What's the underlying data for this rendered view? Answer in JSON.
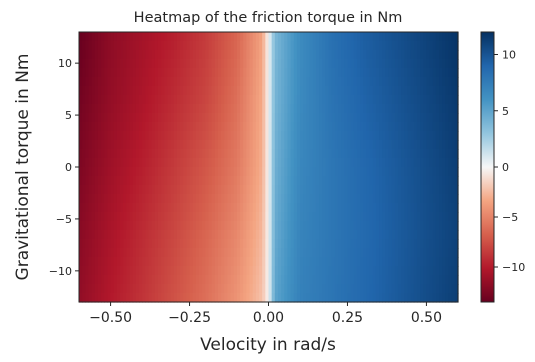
{
  "chart_data": {
    "type": "heatmap",
    "title": "Heatmap of the friction torque in Nm",
    "xlabel": "Velocity in rad/s",
    "ylabel": "Gravitational torque in Nm",
    "xlim": [
      -0.6,
      0.6
    ],
    "ylim": [
      -13,
      13
    ],
    "xticks": [
      -0.5,
      -0.25,
      0.0,
      0.25,
      0.5
    ],
    "xtick_labels": [
      "−0.50",
      "−0.25",
      "0.00",
      "0.25",
      "0.50"
    ],
    "yticks": [
      10,
      5,
      0,
      -5,
      -10
    ],
    "ytick_labels": [
      "10",
      "5",
      "0",
      "−5",
      "−10"
    ],
    "colormap": "RdBu",
    "color_range": [
      -13.5,
      12
    ],
    "colorbar_ticks": [
      10,
      5,
      0,
      -5,
      -10
    ],
    "colorbar_tick_labels": [
      "10",
      "5",
      "0",
      "−5",
      "−10"
    ],
    "x": [
      -0.6,
      -0.5,
      -0.4,
      -0.3,
      -0.2,
      -0.1,
      -0.02,
      0.0,
      0.02,
      0.1,
      0.2,
      0.3,
      0.4,
      0.5,
      0.6
    ],
    "y": [
      13,
      6.5,
      0,
      -6.5,
      -13
    ],
    "values": [
      [
        -13.5,
        -11.8,
        -10.8,
        -9.8,
        -8.5,
        -6.5,
        -3.5,
        0,
        3.8,
        6.5,
        8.3,
        9.4,
        10.2,
        11.0,
        11.8
      ],
      [
        -13.0,
        -11.5,
        -10.4,
        -9.2,
        -8.0,
        -6.0,
        -3.2,
        0,
        4.0,
        6.6,
        8.1,
        9.1,
        9.9,
        10.7,
        11.5
      ],
      [
        -12.5,
        -11.0,
        -9.8,
        -8.5,
        -7.2,
        -5.5,
        -3.0,
        0,
        4.3,
        6.8,
        7.9,
        8.8,
        9.6,
        10.4,
        11.2
      ],
      [
        -12.0,
        -10.5,
        -9.2,
        -7.9,
        -6.5,
        -4.8,
        -2.6,
        0,
        4.6,
        7.0,
        7.9,
        8.7,
        9.5,
        10.3,
        11.0
      ],
      [
        -11.6,
        -10.1,
        -8.8,
        -7.4,
        -6.0,
        -4.2,
        -2.2,
        0,
        5.0,
        7.2,
        8.0,
        8.8,
        9.6,
        10.4,
        11.2
      ]
    ]
  }
}
